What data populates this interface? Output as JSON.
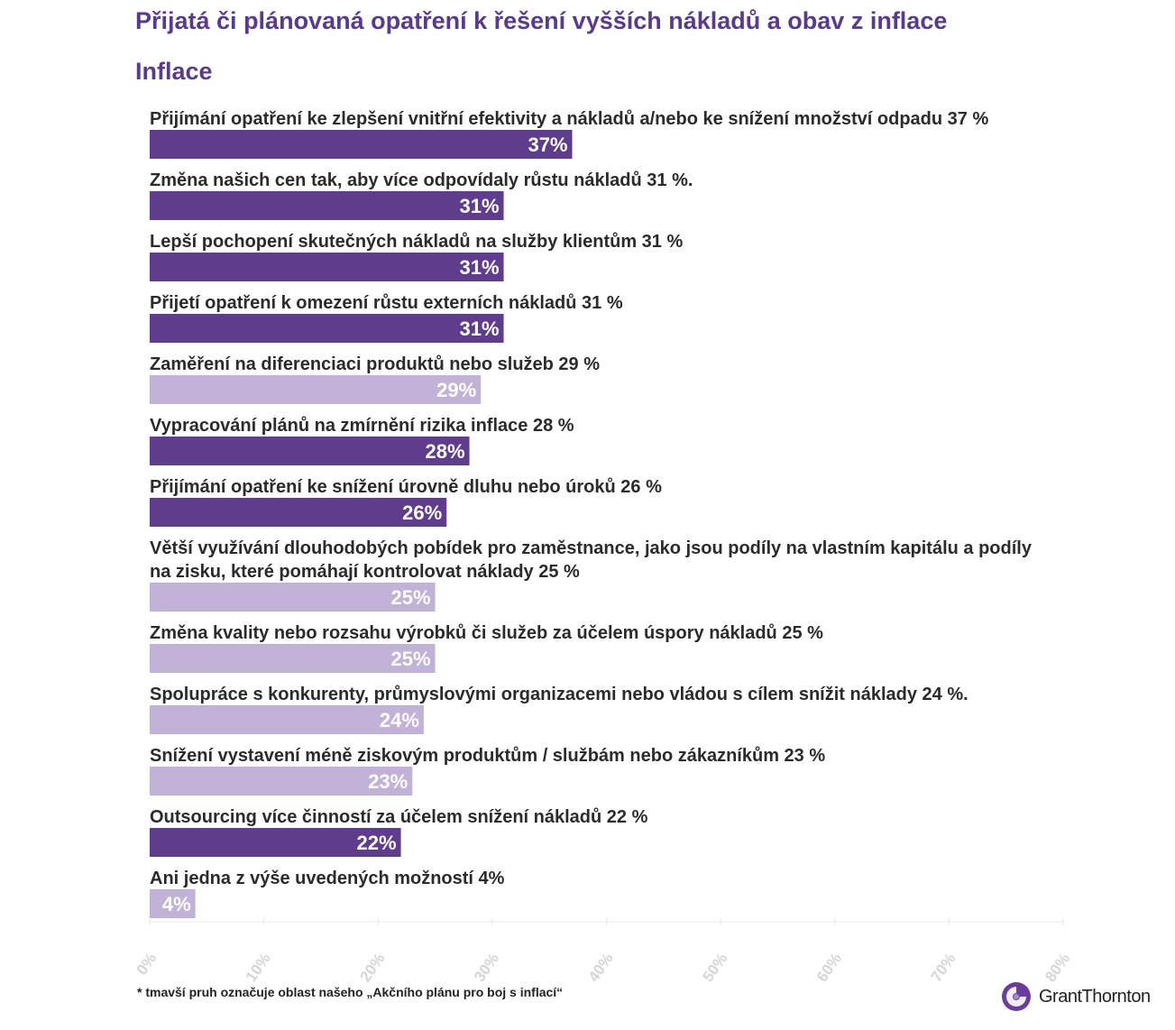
{
  "header": {
    "title": "Přijatá či plánovaná opatření k řešení vyšších nákladů a obav z inflace",
    "subtitle": "Inflace"
  },
  "footnote": "* tmavší pruh označuje oblast našeho „Akčního plánu pro boj s inflací“",
  "logo": {
    "text": "GrantThornton"
  },
  "colors": {
    "dark_bar": "#5f3d8c",
    "light_bar": "#c2b2d7",
    "title": "#5b3a8c"
  },
  "chart_data": {
    "type": "bar",
    "orientation": "horizontal",
    "xlim": [
      0,
      80
    ],
    "ticks": [
      "0%",
      "10%",
      "20%",
      "30%",
      "40%",
      "50%",
      "60%",
      "70%",
      "80%"
    ],
    "categories": [
      {
        "label_lines": [
          "Přijímání opatření ke zlepšení vnitřní efektivity a nákladů a/nebo ke snížení množství odpadu 37 %"
        ],
        "value": 37,
        "value_label": "37%",
        "highlight": true
      },
      {
        "label_lines": [
          "Změna našich cen tak, aby více odpovídaly růstu nákladů 31 %."
        ],
        "value": 31,
        "value_label": "31%",
        "highlight": true
      },
      {
        "label_lines": [
          "Lepší pochopení skutečných nákladů na služby klientům 31 %"
        ],
        "value": 31,
        "value_label": "31%",
        "highlight": true
      },
      {
        "label_lines": [
          "Přijetí opatření k omezení růstu externích nákladů 31 %"
        ],
        "value": 31,
        "value_label": "31%",
        "highlight": true
      },
      {
        "label_lines": [
          "Zaměření na diferenciaci produktů nebo služeb 29 %"
        ],
        "value": 29,
        "value_label": "29%",
        "highlight": false
      },
      {
        "label_lines": [
          "Vypracování plánů na zmírnění rizika inflace 28 %"
        ],
        "value": 28,
        "value_label": "28%",
        "highlight": true
      },
      {
        "label_lines": [
          "Přijímání opatření ke snížení úrovně dluhu nebo úroků 26 %"
        ],
        "value": 26,
        "value_label": "26%",
        "highlight": true
      },
      {
        "label_lines": [
          "Větší využívání dlouhodobých pobídek pro zaměstnance, jako jsou podíly na vlastním kapitálu a podíly",
          "na zisku, které pomáhají kontrolovat náklady 25 %"
        ],
        "value": 25,
        "value_label": "25%",
        "highlight": false
      },
      {
        "label_lines": [
          "Změna kvality nebo rozsahu výrobků či služeb za účelem úspory nákladů 25 %"
        ],
        "value": 25,
        "value_label": "25%",
        "highlight": false
      },
      {
        "label_lines": [
          "Spolupráce s konkurenty, průmyslovými organizacemi nebo vládou s cílem snížit náklady 24 %."
        ],
        "value": 24,
        "value_label": "24%",
        "highlight": false
      },
      {
        "label_lines": [
          "Snížení vystavení méně ziskovým produktům / službám nebo zákazníkům 23 %"
        ],
        "value": 23,
        "value_label": "23%",
        "highlight": false
      },
      {
        "label_lines": [
          "Outsourcing více činností za účelem snížení nákladů 22 %"
        ],
        "value": 22,
        "value_label": "22%",
        "highlight": true
      },
      {
        "label_lines": [
          "Ani jedna z výše uvedených možností 4%"
        ],
        "value": 4,
        "value_label": "4%",
        "highlight": false
      }
    ]
  }
}
